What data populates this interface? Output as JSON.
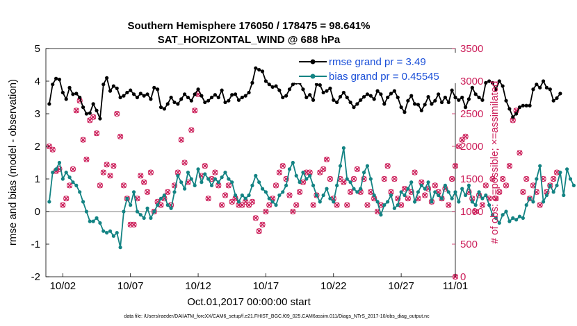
{
  "chart_data": {
    "type": "line",
    "title_line1": "Southern Hemisphere 176050 / 178475 = 98.641%",
    "title_line2": "SAT_HORIZONTAL_WIND @ 688 hPa",
    "xlabel": "Oct.01,2017 00:00:00 start",
    "ylabel_left": "rmse and bias (model - observation)",
    "ylabel_right": "# of obs: o=possible; ×=assimilated",
    "footer": "data file: /Users/raeder/DAI/ATM_forcXX/CAM6_setup/f.e21.FHIST_BGC.f09_025.CAM6assim.011/Diags_NTrS_2017-10/obs_diag_output.nc",
    "x_range": [
      0.75,
      31.0
    ],
    "ylim_left": [
      -2,
      5
    ],
    "ylim_right": [
      0,
      3500
    ],
    "x_ticks": [
      {
        "v": 2,
        "label": "10/02"
      },
      {
        "v": 7,
        "label": "10/07"
      },
      {
        "v": 12,
        "label": "10/12"
      },
      {
        "v": 17,
        "label": "10/17"
      },
      {
        "v": 22,
        "label": "10/22"
      },
      {
        "v": 27,
        "label": "10/27"
      },
      {
        "v": 31,
        "label": "11/01"
      }
    ],
    "y_ticks_left": [
      "-2",
      "-1",
      "0",
      "1",
      "2",
      "3",
      "4",
      "5"
    ],
    "y_ticks_right": [
      "0",
      "500",
      "1000",
      "1500",
      "2000",
      "2500",
      "3000",
      "3500"
    ],
    "legend": {
      "rmse": "rmse grand pr = 3.49",
      "bias": "bias grand pr = 0.45545"
    },
    "colors": {
      "rmse": "#000000",
      "bias": "#138383",
      "obs": "#cc1f5a",
      "zero": "#aaaaaa"
    },
    "dt_days": 0.25,
    "x_start": 1.0,
    "rmse": [
      3.3,
      3.9,
      4.08,
      4.05,
      3.65,
      3.45,
      3.8,
      3.6,
      3.62,
      3.5,
      3.2,
      3.0,
      3.02,
      3.3,
      3.1,
      2.85,
      3.9,
      4.1,
      3.7,
      3.85,
      3.78,
      3.5,
      3.55,
      3.65,
      3.72,
      3.6,
      3.5,
      3.62,
      3.55,
      3.6,
      3.45,
      3.8,
      3.75,
      3.2,
      3.15,
      3.3,
      3.5,
      3.35,
      3.3,
      3.45,
      3.6,
      3.5,
      3.4,
      3.6,
      3.75,
      3.55,
      3.35,
      3.4,
      3.5,
      3.58,
      3.5,
      3.72,
      3.35,
      3.4,
      3.58,
      3.6,
      3.42,
      3.5,
      3.55,
      3.65,
      3.95,
      4.4,
      4.35,
      4.3,
      4.0,
      3.9,
      3.82,
      3.85,
      3.72,
      3.5,
      3.55,
      3.75,
      3.9,
      3.95,
      3.95,
      3.75,
      3.5,
      3.58,
      3.42,
      3.9,
      3.88,
      3.65,
      3.7,
      3.78,
      3.42,
      3.35,
      3.52,
      3.65,
      3.5,
      3.35,
      3.2,
      3.3,
      3.42,
      3.52,
      3.6,
      3.55,
      3.45,
      3.7,
      3.6,
      3.3,
      3.5,
      3.62,
      3.7,
      3.5,
      3.2,
      3.05,
      3.4,
      3.55,
      3.3,
      3.28,
      3.1,
      3.28,
      3.52,
      3.3,
      3.4,
      3.6,
      3.35,
      3.5,
      3.35,
      3.72,
      3.5,
      3.42,
      3.5,
      3.2,
      3.45,
      3.8,
      3.6,
      3.5,
      3.42,
      3.95,
      4.0,
      3.95,
      3.75,
      4.0,
      3.85,
      3.4,
      3.15,
      2.9,
      3.0,
      3.2,
      3.25,
      3.25,
      3.25,
      3.75,
      3.9,
      3.8,
      4.0,
      3.8,
      3.75,
      3.4,
      3.48,
      3.62
    ],
    "bias": [
      0.3,
      1.2,
      1.3,
      1.5,
      1.0,
      1.2,
      1.05,
      0.9,
      0.8,
      0.6,
      0.3,
      0.0,
      -0.3,
      -0.3,
      -0.2,
      -0.35,
      -0.6,
      -0.65,
      -0.6,
      -0.75,
      -0.65,
      -1.1,
      0.0,
      0.4,
      0.2,
      0.6,
      0.0,
      -0.1,
      -0.2,
      0.1,
      -0.2,
      0.0,
      0.2,
      0.4,
      0.5,
      0.2,
      0.1,
      0.6,
      1.1,
      0.9,
      0.7,
      1.2,
      1.0,
      0.8,
      1.3,
      0.9,
      1.15,
      1.0,
      0.8,
      1.0,
      0.9,
      1.05,
      1.2,
      1.0,
      0.9,
      0.5,
      0.3,
      0.5,
      0.4,
      0.5,
      0.8,
      1.1,
      0.9,
      0.7,
      0.6,
      0.4,
      0.3,
      0.2,
      0.5,
      0.6,
      0.8,
      1.3,
      1.5,
      1.1,
      0.9,
      1.2,
      1.0,
      1.1,
      0.8,
      0.5,
      0.3,
      0.5,
      0.7,
      0.4,
      0.3,
      0.8,
      1.4,
      1.95,
      1.0,
      0.9,
      0.7,
      0.6,
      0.7,
      1.2,
      1.4,
      1.0,
      0.5,
      0.3,
      -0.1,
      0.2,
      0.3,
      0.5,
      0.1,
      0.2,
      0.6,
      0.5,
      0.7,
      0.9,
      0.3,
      0.6,
      0.8,
      0.7,
      0.9,
      0.3,
      0.6,
      0.5,
      0.4,
      0.8,
      0.6,
      0.4,
      0.6,
      0.3,
      0.7,
      0.5,
      0.8,
      0.3,
      0.2,
      0.6,
      0.4,
      0.5,
      0.2,
      -0.1,
      -0.2,
      -0.35,
      -0.1,
      0.0,
      -0.3,
      -0.2,
      -0.25,
      -0.15,
      -0.2,
      0.2,
      0.4,
      0.3,
      1.0,
      1.4,
      0.3,
      0.5,
      0.8,
      0.6,
      0.8,
      1.2,
      0.5,
      1.3,
      1.0,
      0.8
    ],
    "obs": [
      2000,
      1950,
      1620,
      1650,
      1100,
      1200,
      1400,
      1650,
      2550,
      2700,
      2100,
      1800,
      2400,
      2450,
      2200,
      1400,
      1600,
      1720,
      1550,
      1700,
      2500,
      2150,
      1400,
      1200,
      800,
      800,
      1200,
      1550,
      1450,
      1300,
      1600,
      1000,
      1150,
      1100,
      1200,
      1300,
      1100,
      1400,
      1600,
      2100,
      1750,
      1450,
      2250,
      2550,
      2800,
      1550,
      1700,
      1200,
      1500,
      1600,
      1400,
      1100,
      1250,
      1400,
      1150,
      1200,
      1100,
      1100,
      1150,
      1100,
      1150,
      900,
      700,
      800,
      1000,
      1100,
      1200,
      1400,
      1600,
      1700,
      1500,
      1250,
      1000,
      1100,
      1300,
      1450,
      1600,
      1600,
      1100,
      1250,
      1600,
      1650,
      1800,
      1500,
      1200,
      1100,
      1500,
      1450,
      1100,
      1300,
      1500,
      1650,
      1300,
      1500,
      1100,
      1300,
      1200,
      1000,
      1100,
      1500,
      1700,
      1300,
      1500,
      1200,
      1100,
      1350,
      1200,
      1300,
      1600,
      1200,
      1450,
      1250,
      1350,
      1150,
      1400,
      1300,
      1200,
      1350,
      1100,
      1500,
      1700,
      2000,
      2100,
      2150,
      1300,
      1200,
      1000,
      1250,
      1100,
      1400,
      1200,
      1500,
      1200,
      1300,
      1500,
      1400,
      1700,
      2400,
      2550,
      1900,
      1300,
      1500,
      1200,
      1400,
      1300,
      1100,
      1500,
      1300,
      1400,
      1500,
      1600
    ]
  }
}
